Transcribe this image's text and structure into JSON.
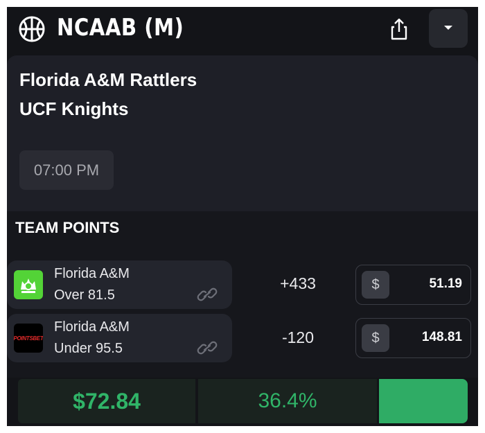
{
  "header": {
    "title": "NCAAB (M)",
    "brand_icon": "basketball-icon",
    "share_icon": "share-icon",
    "dropdown_icon": "caret-down-icon"
  },
  "matchup": {
    "team1": "Florida A&M Rattlers",
    "team2": "UCF Knights",
    "time": "07:00 PM"
  },
  "section": {
    "title": "TEAM POINTS"
  },
  "bets": [
    {
      "book_icon": "draftkings-logo",
      "team": "Florida A&M",
      "line": "Over 81.5",
      "odds": "+433",
      "stake_symbol": "$",
      "stake": "51.19"
    },
    {
      "book_icon": "pointsbet-logo",
      "book_text": "POINTSBET",
      "team": "Florida A&M",
      "line": "Under 95.5",
      "odds": "-120",
      "stake_symbol": "$",
      "stake": "148.81"
    }
  ],
  "footer": {
    "profit": "$72.84",
    "percent": "36.4%"
  },
  "colors": {
    "background": "#131418",
    "card": "#1e1f27",
    "accent_green": "#30b468",
    "button_green": "#2fac65",
    "draftkings_green": "#53d337",
    "pointsbet_red": "#e42b2b"
  }
}
